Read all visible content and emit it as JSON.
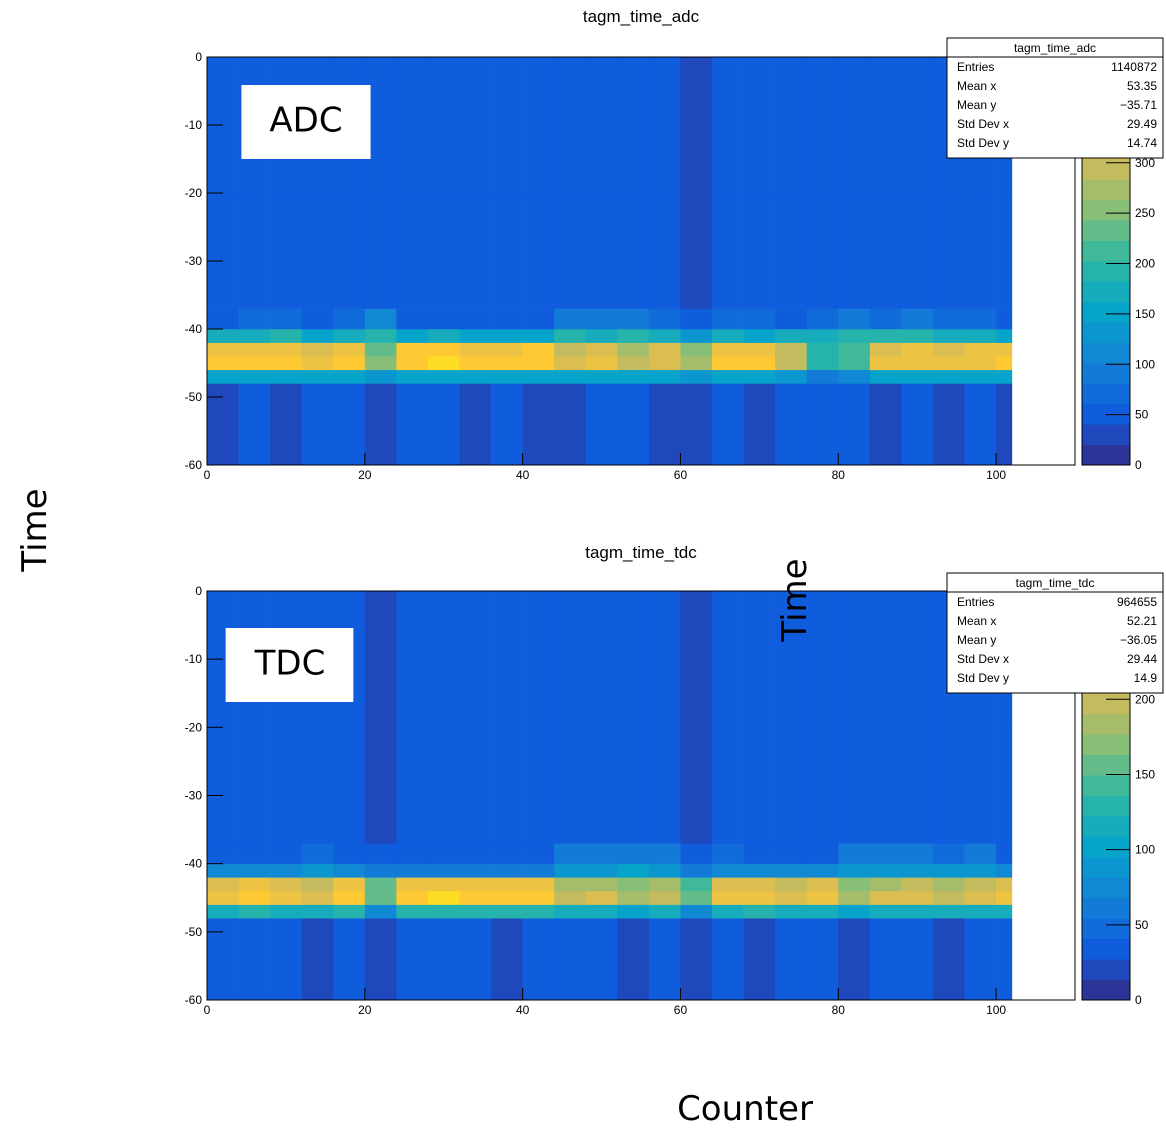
{
  "figure": {
    "ylabel": "Time",
    "xlabel": "Counter"
  },
  "chart_data": [
    {
      "type": "heatmap",
      "title": "tagm_time_adc",
      "annotation": "ADC",
      "xlim": [
        0,
        110
      ],
      "xticks": [
        0,
        20,
        40,
        60,
        80,
        100
      ],
      "ylim": [
        -60,
        0
      ],
      "yticks": [
        -60,
        -50,
        -40,
        -30,
        -20,
        -10,
        0
      ],
      "zlim": [
        0,
        405
      ],
      "zticks": [
        0,
        50,
        100,
        150,
        200,
        250,
        300
      ],
      "colorscale": [
        "#352a87",
        "#0f5cdd",
        "#1481d6",
        "#06a4ca",
        "#2eb7a4",
        "#87bf77",
        "#d1bb59",
        "#fec832",
        "#f9fb0e"
      ],
      "xbins": [
        0,
        4,
        8,
        12,
        16,
        20,
        24,
        28,
        32,
        36,
        40,
        44,
        48,
        52,
        56,
        60,
        64,
        68,
        72,
        76,
        80,
        84,
        88,
        92,
        96,
        100,
        102
      ],
      "ybins": [
        -60,
        -48,
        -46,
        -44,
        -42,
        -40,
        -37,
        -20,
        0
      ],
      "z": [
        [
          40,
          41,
          39,
          42,
          41,
          40,
          41,
          42,
          40,
          41,
          39,
          40,
          41,
          42,
          40,
          34,
          41,
          40,
          42,
          60,
          58,
          40,
          41,
          40,
          41,
          40
        ],
        [
          150,
          155,
          145,
          160,
          150,
          130,
          155,
          160,
          150,
          145,
          155,
          150,
          160,
          150,
          155,
          130,
          150,
          145,
          135,
          100,
          110,
          150,
          155,
          145,
          150,
          155
        ],
        [
          345,
          355,
          350,
          335,
          355,
          250,
          360,
          365,
          355,
          350,
          360,
          310,
          325,
          295,
          320,
          270,
          345,
          355,
          300,
          190,
          210,
          330,
          340,
          335,
          340,
          350
        ],
        [
          330,
          340,
          335,
          315,
          340,
          240,
          350,
          355,
          340,
          335,
          345,
          295,
          310,
          280,
          305,
          255,
          335,
          340,
          285,
          200,
          220,
          315,
          325,
          320,
          325,
          335
        ],
        [
          170,
          165,
          185,
          160,
          170,
          190,
          160,
          165,
          160,
          150,
          160,
          185,
          180,
          200,
          170,
          140,
          170,
          160,
          165,
          170,
          200,
          185,
          190,
          180,
          170,
          160
        ],
        [
          60,
          65,
          80,
          60,
          75,
          110,
          60,
          55,
          60,
          55,
          60,
          90,
          85,
          95,
          75,
          60,
          80,
          65,
          60,
          75,
          95,
          80,
          90,
          75,
          80,
          60
        ],
        [
          44,
          45,
          46,
          44,
          45,
          50,
          44,
          45,
          44,
          45,
          46,
          44,
          45,
          44,
          45,
          38,
          44,
          45,
          44,
          45,
          44,
          45,
          44,
          46,
          44,
          45
        ],
        [
          42,
          43,
          41,
          42,
          43,
          41,
          42,
          43,
          42,
          41,
          42,
          43,
          41,
          42,
          43,
          36,
          42,
          41,
          43,
          42,
          41,
          43,
          42,
          41,
          43,
          42
        ]
      ],
      "stats": {
        "title": "tagm_time_adc",
        "rows": [
          [
            "Entries",
            "1140872"
          ],
          [
            "Mean x",
            "53.35"
          ],
          [
            "Mean y",
            "−35.71"
          ],
          [
            "Std Dev x",
            "29.49"
          ],
          [
            "Std Dev y",
            "14.74"
          ]
        ]
      }
    },
    {
      "type": "heatmap",
      "title": "tagm_time_tdc",
      "annotation": "TDC",
      "ylabel": "Time",
      "xlim": [
        0,
        110
      ],
      "xticks": [
        0,
        20,
        40,
        60,
        80,
        100
      ],
      "ylim": [
        -60,
        0
      ],
      "yticks": [
        -60,
        -50,
        -40,
        -30,
        -20,
        -10,
        0
      ],
      "zlim": [
        0,
        272
      ],
      "zticks": [
        0,
        50,
        100,
        150,
        200
      ],
      "colorscale": [
        "#352a87",
        "#0f5cdd",
        "#1481d6",
        "#06a4ca",
        "#2eb7a4",
        "#87bf77",
        "#d1bb59",
        "#fec832",
        "#f9fb0e"
      ],
      "xbins": [
        0,
        4,
        8,
        12,
        16,
        20,
        24,
        28,
        32,
        36,
        40,
        44,
        48,
        52,
        56,
        60,
        64,
        68,
        72,
        76,
        80,
        84,
        88,
        92,
        96,
        100,
        102
      ],
      "ybins": [
        -60,
        -48,
        -46,
        -44,
        -42,
        -40,
        -37,
        -20,
        0
      ],
      "z": [
        [
          28,
          29,
          28,
          27,
          29,
          18,
          28,
          29,
          28,
          27,
          28,
          29,
          28,
          27,
          29,
          18,
          28,
          27,
          29,
          28,
          27,
          29,
          28,
          27,
          29,
          28
        ],
        [
          120,
          125,
          120,
          115,
          125,
          80,
          130,
          135,
          130,
          125,
          130,
          110,
          115,
          105,
          110,
          80,
          120,
          125,
          115,
          120,
          100,
          110,
          115,
          110,
          115,
          120
        ],
        [
          230,
          235,
          230,
          210,
          235,
          160,
          240,
          245,
          240,
          235,
          240,
          195,
          205,
          190,
          200,
          150,
          225,
          230,
          215,
          220,
          180,
          205,
          215,
          200,
          210,
          220
        ],
        [
          215,
          220,
          215,
          195,
          220,
          150,
          225,
          230,
          225,
          220,
          225,
          180,
          190,
          175,
          185,
          140,
          210,
          215,
          200,
          205,
          170,
          190,
          200,
          185,
          195,
          205
        ],
        [
          70,
          70,
          70,
          85,
          70,
          55,
          65,
          65,
          65,
          65,
          65,
          95,
          90,
          100,
          90,
          60,
          75,
          70,
          70,
          70,
          95,
          90,
          95,
          85,
          90,
          70
        ],
        [
          35,
          35,
          40,
          50,
          35,
          30,
          32,
          32,
          32,
          32,
          32,
          60,
          55,
          65,
          55,
          32,
          45,
          35,
          35,
          40,
          65,
          55,
          60,
          50,
          55,
          35
        ],
        [
          30,
          29,
          30,
          29,
          30,
          20,
          29,
          30,
          29,
          30,
          29,
          30,
          29,
          30,
          29,
          18,
          30,
          29,
          30,
          29,
          30,
          29,
          30,
          29,
          30,
          29
        ],
        [
          29,
          30,
          29,
          30,
          29,
          19,
          30,
          29,
          30,
          29,
          30,
          29,
          30,
          29,
          30,
          17,
          29,
          30,
          29,
          30,
          29,
          30,
          29,
          30,
          29,
          30
        ]
      ],
      "stats": {
        "title": "tagm_time_tdc",
        "rows": [
          [
            "Entries",
            "964655"
          ],
          [
            "Mean x",
            "52.21"
          ],
          [
            "Mean y",
            "−36.05"
          ],
          [
            "Std Dev x",
            "29.44"
          ],
          [
            "Std Dev y",
            "14.9"
          ]
        ]
      }
    }
  ]
}
